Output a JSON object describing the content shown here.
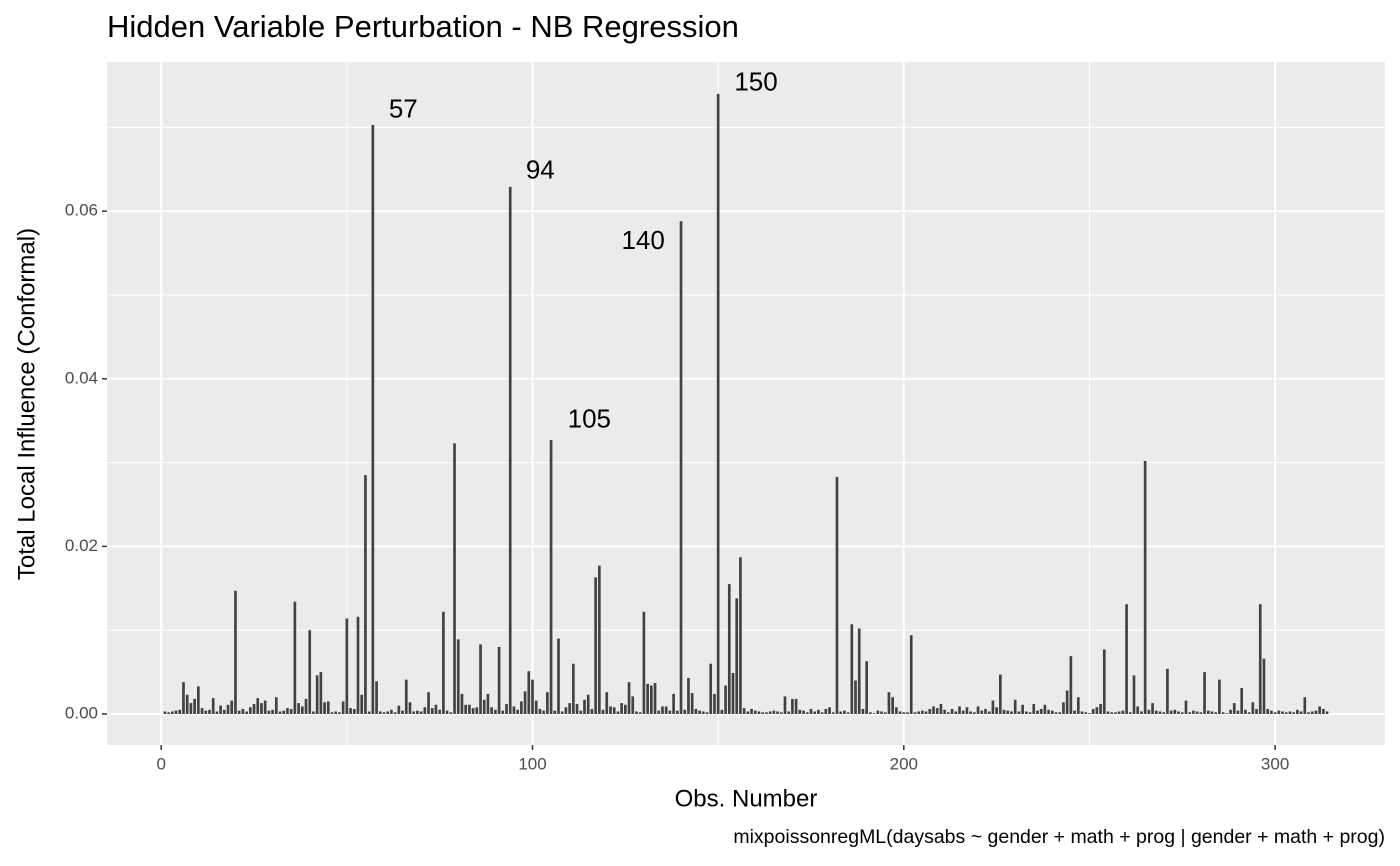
{
  "chart_data": {
    "type": "bar",
    "title": "Hidden Variable Perturbation - NB Regression",
    "x_label": "Obs. Number",
    "y_label": "Total Local Influence (Conformal)",
    "caption": "mixpoissonregML(daysabs ~ gender + math + prog | gender + math + prog)",
    "color": "#424242",
    "grid": true,
    "xlim": [
      -14.6,
      329.6
    ],
    "ylim": [
      -0.0037,
      0.0778
    ],
    "xticks": [
      0,
      100,
      200,
      300
    ],
    "xminor": [
      50,
      150,
      250
    ],
    "yticks": [
      {
        "value": 0,
        "label": "0.00"
      },
      {
        "value": 0.02,
        "label": "0.02"
      },
      {
        "value": 0.04,
        "label": "0.04"
      },
      {
        "value": 0.06,
        "label": "0.06"
      }
    ],
    "yminor": [
      0.01,
      0.03,
      0.05,
      0.07
    ],
    "annotations": [
      {
        "text": "57",
        "x": 65.2,
        "y": 0.072
      },
      {
        "text": "94",
        "x": 102.1,
        "y": 0.0647
      },
      {
        "text": "105",
        "x": 115.3,
        "y": 0.035
      },
      {
        "text": "140",
        "x": 129.8,
        "y": 0.0563
      },
      {
        "text": "150",
        "x": 160.2,
        "y": 0.0752
      }
    ],
    "x": [
      1,
      2,
      3,
      4,
      5,
      6,
      7,
      8,
      9,
      10,
      11,
      12,
      13,
      14,
      15,
      16,
      17,
      18,
      19,
      20,
      21,
      22,
      23,
      24,
      25,
      26,
      27,
      28,
      29,
      30,
      31,
      32,
      33,
      34,
      35,
      36,
      37,
      38,
      39,
      40,
      41,
      42,
      43,
      44,
      45,
      46,
      47,
      48,
      49,
      50,
      51,
      52,
      53,
      54,
      55,
      56,
      57,
      58,
      59,
      60,
      61,
      62,
      63,
      64,
      65,
      66,
      67,
      68,
      69,
      70,
      71,
      72,
      73,
      74,
      75,
      76,
      77,
      78,
      79,
      80,
      81,
      82,
      83,
      84,
      85,
      86,
      87,
      88,
      89,
      90,
      91,
      92,
      93,
      94,
      95,
      96,
      97,
      98,
      99,
      100,
      101,
      102,
      103,
      104,
      105,
      106,
      107,
      108,
      109,
      110,
      111,
      112,
      113,
      114,
      115,
      116,
      117,
      118,
      119,
      120,
      121,
      122,
      123,
      124,
      125,
      126,
      127,
      128,
      129,
      130,
      131,
      132,
      133,
      134,
      135,
      136,
      137,
      138,
      139,
      140,
      141,
      142,
      143,
      144,
      145,
      146,
      147,
      148,
      149,
      150,
      151,
      152,
      153,
      154,
      155,
      156,
      157,
      158,
      159,
      160,
      161,
      162,
      163,
      164,
      165,
      166,
      167,
      168,
      169,
      170,
      171,
      172,
      173,
      174,
      175,
      176,
      177,
      178,
      179,
      180,
      181,
      182,
      183,
      184,
      185,
      186,
      187,
      188,
      189,
      190,
      191,
      192,
      193,
      194,
      195,
      196,
      197,
      198,
      199,
      200,
      201,
      202,
      203,
      204,
      205,
      206,
      207,
      208,
      209,
      210,
      211,
      212,
      213,
      214,
      215,
      216,
      217,
      218,
      219,
      220,
      221,
      222,
      223,
      224,
      225,
      226,
      227,
      228,
      229,
      230,
      231,
      232,
      233,
      234,
      235,
      236,
      237,
      238,
      239,
      240,
      241,
      242,
      243,
      244,
      245,
      246,
      247,
      248,
      249,
      250,
      251,
      252,
      253,
      254,
      255,
      256,
      257,
      258,
      259,
      260,
      261,
      262,
      263,
      264,
      265,
      266,
      267,
      268,
      269,
      270,
      271,
      272,
      273,
      274,
      275,
      276,
      277,
      278,
      279,
      280,
      281,
      282,
      283,
      284,
      285,
      286,
      287,
      288,
      289,
      290,
      291,
      292,
      293,
      294,
      295,
      296,
      297,
      298,
      299,
      300,
      301,
      302,
      303,
      304,
      305,
      306,
      307,
      308,
      309,
      310,
      311,
      312,
      313,
      314
    ],
    "values": [
      0.0003,
      0.0002,
      0.0003,
      0.0004,
      0.0005,
      0.0038,
      0.0023,
      0.0013,
      0.0018,
      0.0033,
      0.0007,
      0.0004,
      0.0005,
      0.0019,
      0.0003,
      0.001,
      0.0005,
      0.0011,
      0.0016,
      0.0147,
      0.0004,
      0.0006,
      0.0003,
      0.0008,
      0.0012,
      0.0019,
      0.0013,
      0.0016,
      0.0004,
      0.0005,
      0.002,
      0.0003,
      0.0004,
      0.0007,
      0.0006,
      0.0134,
      0.0013,
      0.0009,
      0.0018,
      0.01,
      0.0003,
      0.0046,
      0.005,
      0.0014,
      0.0015,
      0.0002,
      0.0003,
      0.0002,
      0.0015,
      0.0114,
      0.0007,
      0.0006,
      0.0116,
      0.0023,
      0.0285,
      0.0003,
      0.0703,
      0.0039,
      0.0003,
      0.0002,
      0.0003,
      0.0005,
      0.0002,
      0.001,
      0.0004,
      0.0041,
      0.0014,
      0.0003,
      0.0004,
      0.0003,
      0.0008,
      0.0026,
      0.0007,
      0.0011,
      0.0005,
      0.0122,
      0.0004,
      0.0002,
      0.0323,
      0.0089,
      0.0024,
      0.0011,
      0.0011,
      0.0007,
      0.0008,
      0.0083,
      0.0017,
      0.0024,
      0.0008,
      0.0005,
      0.008,
      0.0004,
      0.0012,
      0.0629,
      0.0009,
      0.0005,
      0.0015,
      0.0027,
      0.0051,
      0.0041,
      0.0016,
      0.0006,
      0.0004,
      0.0026,
      0.0327,
      0.0004,
      0.009,
      0.0003,
      0.0008,
      0.0013,
      0.006,
      0.0012,
      0.0004,
      0.0017,
      0.0023,
      0.0006,
      0.0163,
      0.0177,
      0.0005,
      0.0026,
      0.0009,
      0.0008,
      0.0003,
      0.0013,
      0.0011,
      0.0038,
      0.0021,
      0.0003,
      0.0002,
      0.0122,
      0.0036,
      0.0034,
      0.0037,
      0.0004,
      0.0009,
      0.0009,
      0.0004,
      0.0024,
      0.0004,
      0.0588,
      0.0005,
      0.0043,
      0.0025,
      0.0006,
      0.0004,
      0.0003,
      0.0002,
      0.006,
      0.0024,
      0.074,
      0.0005,
      0.0034,
      0.0155,
      0.0049,
      0.0138,
      0.0187,
      0.0007,
      0.0003,
      0.0006,
      0.0004,
      0.0003,
      0.0002,
      0.0002,
      0.0003,
      0.0004,
      0.0003,
      0.0002,
      0.0021,
      0.0003,
      0.0018,
      0.0018,
      0.0005,
      0.0004,
      0.0002,
      0.0006,
      0.0003,
      0.0005,
      0.0002,
      0.0006,
      0.0008,
      0.0002,
      0.0283,
      0.0003,
      0.0004,
      0.0002,
      0.0107,
      0.004,
      0.0102,
      0.0006,
      0.0063,
      0.0002,
      0.0001,
      0.0004,
      0.0003,
      0.0002,
      0.0026,
      0.002,
      0.0008,
      0.0003,
      0.0002,
      0.0002,
      0.0094,
      0.0002,
      0.0003,
      0.0004,
      0.0003,
      0.0006,
      0.0009,
      0.0007,
      0.0012,
      0.0005,
      0.0002,
      0.0006,
      0.0003,
      0.0009,
      0.0004,
      0.0008,
      0.0003,
      0.0002,
      0.0009,
      0.0004,
      0.0006,
      0.0003,
      0.0016,
      0.0008,
      0.0047,
      0.0005,
      0.0004,
      0.0003,
      0.0017,
      0.0003,
      0.0011,
      0.0003,
      0.0002,
      0.0012,
      0.0004,
      0.0006,
      0.0011,
      0.0005,
      0.0004,
      0.0002,
      0.0002,
      0.0014,
      0.0028,
      0.0069,
      0.0004,
      0.002,
      0.0003,
      0.0002,
      0.0001,
      0.0006,
      0.0008,
      0.0012,
      0.0077,
      0.0003,
      0.0002,
      0.0002,
      0.0003,
      0.0004,
      0.0131,
      0.0002,
      0.0046,
      0.0009,
      0.0003,
      0.0302,
      0.0005,
      0.0013,
      0.0004,
      0.0003,
      0.0002,
      0.0054,
      0.0004,
      0.0005,
      0.0003,
      0.0002,
      0.0016,
      0.0002,
      0.0004,
      0.0003,
      0.0002,
      0.005,
      0.0004,
      0.0003,
      0.0002,
      0.0041,
      0.0002,
      0.0001,
      0.0005,
      0.0013,
      0.0004,
      0.0031,
      0.0005,
      0.0002,
      0.0014,
      0.0006,
      0.0131,
      0.0066,
      0.0006,
      0.0004,
      0.0002,
      0.0004,
      0.0003,
      0.0002,
      0.0003,
      0.0002,
      0.0005,
      0.0003,
      0.002,
      0.0002,
      0.0003,
      0.0004,
      0.0009,
      0.0006,
      0.0003
    ]
  }
}
